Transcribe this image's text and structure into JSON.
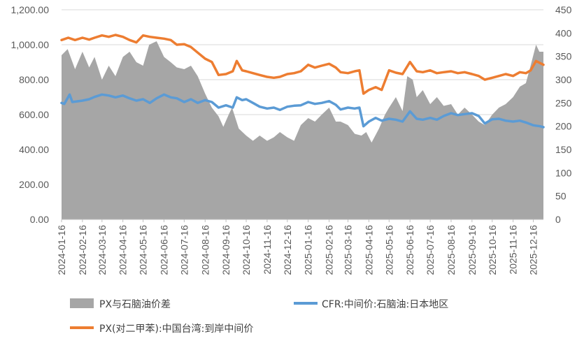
{
  "chart_data": {
    "type": "area+line",
    "title": "",
    "x_ticks": [
      "2024-01-16",
      "2024-02-16",
      "2024-03-16",
      "2024-04-16",
      "2024-05-16",
      "2024-06-16",
      "2024-07-16",
      "2024-08-16",
      "2024-09-16",
      "2024-10-16",
      "2024-11-16",
      "2024-12-16",
      "2025-01-16",
      "2025-02-16",
      "2025-03-16",
      "2025-04-16",
      "2025-05-16",
      "2025-06-16",
      "2025-07-16",
      "2025-08-16",
      "2025-09-16",
      "2025-10-16",
      "2025-11-16",
      "2025-12-16"
    ],
    "y_left": {
      "ticks": [
        "0.00",
        "200.00",
        "400.00",
        "600.00",
        "800.00",
        "1,000.00",
        "1,200.00"
      ],
      "range": [
        0,
        1200
      ]
    },
    "y_right": {
      "ticks": [
        "0",
        "50",
        "100",
        "150",
        "200",
        "250",
        "300",
        "350",
        "400",
        "450"
      ],
      "range": [
        0,
        450
      ]
    },
    "grid": "horizontal",
    "legend_position": "bottom",
    "series": [
      {
        "name": "PX与石脑油价差",
        "kind": "area",
        "axis": "left",
        "color": "#a6a6a6",
        "points": [
          [
            "2024-01-16",
            940
          ],
          [
            "2024-01-25",
            975
          ],
          [
            "2024-02-05",
            860
          ],
          [
            "2024-02-16",
            960
          ],
          [
            "2024-02-26",
            870
          ],
          [
            "2024-03-05",
            930
          ],
          [
            "2024-03-16",
            800
          ],
          [
            "2024-03-26",
            880
          ],
          [
            "2024-04-05",
            820
          ],
          [
            "2024-04-16",
            930
          ],
          [
            "2024-04-26",
            960
          ],
          [
            "2024-05-06",
            900
          ],
          [
            "2024-05-16",
            880
          ],
          [
            "2024-05-25",
            1000
          ],
          [
            "2024-06-05",
            1020
          ],
          [
            "2024-06-16",
            930
          ],
          [
            "2024-06-26",
            900
          ],
          [
            "2024-07-05",
            870
          ],
          [
            "2024-07-16",
            860
          ],
          [
            "2024-07-26",
            880
          ],
          [
            "2024-08-05",
            820
          ],
          [
            "2024-08-16",
            720
          ],
          [
            "2024-08-26",
            640
          ],
          [
            "2024-09-05",
            590
          ],
          [
            "2024-09-12",
            530
          ],
          [
            "2024-09-20",
            600
          ],
          [
            "2024-09-25",
            640
          ],
          [
            "2024-10-05",
            520
          ],
          [
            "2024-10-16",
            480
          ],
          [
            "2024-10-26",
            450
          ],
          [
            "2024-11-05",
            480
          ],
          [
            "2024-11-16",
            450
          ],
          [
            "2024-11-26",
            470
          ],
          [
            "2024-12-05",
            500
          ],
          [
            "2024-12-16",
            470
          ],
          [
            "2024-12-26",
            450
          ],
          [
            "2025-01-05",
            540
          ],
          [
            "2025-01-16",
            580
          ],
          [
            "2025-01-26",
            560
          ],
          [
            "2025-02-05",
            600
          ],
          [
            "2025-02-16",
            640
          ],
          [
            "2025-02-26",
            560
          ],
          [
            "2025-03-05",
            560
          ],
          [
            "2025-03-16",
            540
          ],
          [
            "2025-03-26",
            490
          ],
          [
            "2025-04-05",
            480
          ],
          [
            "2025-04-12",
            500
          ],
          [
            "2025-04-20",
            440
          ],
          [
            "2025-05-01",
            520
          ],
          [
            "2025-05-10",
            600
          ],
          [
            "2025-05-16",
            640
          ],
          [
            "2025-05-26",
            700
          ],
          [
            "2025-06-05",
            620
          ],
          [
            "2025-06-12",
            820
          ],
          [
            "2025-06-20",
            800
          ],
          [
            "2025-06-26",
            700
          ],
          [
            "2025-07-05",
            740
          ],
          [
            "2025-07-16",
            660
          ],
          [
            "2025-07-26",
            700
          ],
          [
            "2025-08-05",
            650
          ],
          [
            "2025-08-16",
            660
          ],
          [
            "2025-08-26",
            600
          ],
          [
            "2025-09-05",
            640
          ],
          [
            "2025-09-16",
            600
          ],
          [
            "2025-09-26",
            560
          ],
          [
            "2025-10-05",
            540
          ],
          [
            "2025-10-16",
            600
          ],
          [
            "2025-10-26",
            640
          ],
          [
            "2025-11-05",
            660
          ],
          [
            "2025-11-16",
            700
          ],
          [
            "2025-11-26",
            760
          ],
          [
            "2025-12-05",
            780
          ],
          [
            "2025-12-12",
            880
          ],
          [
            "2025-12-20",
            1000
          ],
          [
            "2025-12-25",
            960
          ],
          [
            "2025-12-31",
            960
          ]
        ]
      },
      {
        "name": "CFR:中间价:石脑油:日本地区",
        "kind": "line",
        "axis": "right",
        "color": "#5b9bd5",
        "points": [
          [
            "2024-01-16",
            250
          ],
          [
            "2024-01-20",
            248
          ],
          [
            "2024-01-28",
            268
          ],
          [
            "2024-02-01",
            252
          ],
          [
            "2024-02-16",
            255
          ],
          [
            "2024-02-26",
            258
          ],
          [
            "2024-03-05",
            263
          ],
          [
            "2024-03-16",
            268
          ],
          [
            "2024-03-26",
            266
          ],
          [
            "2024-04-05",
            262
          ],
          [
            "2024-04-16",
            266
          ],
          [
            "2024-04-26",
            260
          ],
          [
            "2024-05-06",
            255
          ],
          [
            "2024-05-16",
            258
          ],
          [
            "2024-05-26",
            250
          ],
          [
            "2024-06-05",
            260
          ],
          [
            "2024-06-16",
            268
          ],
          [
            "2024-06-26",
            262
          ],
          [
            "2024-07-05",
            260
          ],
          [
            "2024-07-16",
            252
          ],
          [
            "2024-07-26",
            258
          ],
          [
            "2024-08-05",
            250
          ],
          [
            "2024-08-16",
            256
          ],
          [
            "2024-08-26",
            252
          ],
          [
            "2024-09-05",
            240
          ],
          [
            "2024-09-16",
            245
          ],
          [
            "2024-09-26",
            240
          ],
          [
            "2024-10-02",
            262
          ],
          [
            "2024-10-10",
            256
          ],
          [
            "2024-10-16",
            258
          ],
          [
            "2024-10-26",
            250
          ],
          [
            "2024-11-05",
            242
          ],
          [
            "2024-11-16",
            238
          ],
          [
            "2024-11-26",
            240
          ],
          [
            "2024-12-05",
            235
          ],
          [
            "2024-12-16",
            242
          ],
          [
            "2024-12-26",
            244
          ],
          [
            "2025-01-05",
            245
          ],
          [
            "2025-01-16",
            252
          ],
          [
            "2025-01-26",
            248
          ],
          [
            "2025-02-05",
            250
          ],
          [
            "2025-02-16",
            254
          ],
          [
            "2025-02-26",
            246
          ],
          [
            "2025-03-05",
            236
          ],
          [
            "2025-03-16",
            240
          ],
          [
            "2025-03-26",
            238
          ],
          [
            "2025-04-02",
            240
          ],
          [
            "2025-04-08",
            200
          ],
          [
            "2025-04-16",
            210
          ],
          [
            "2025-04-26",
            218
          ],
          [
            "2025-05-05",
            212
          ],
          [
            "2025-05-16",
            216
          ],
          [
            "2025-05-26",
            214
          ],
          [
            "2025-06-05",
            210
          ],
          [
            "2025-06-16",
            232
          ],
          [
            "2025-06-26",
            216
          ],
          [
            "2025-07-05",
            214
          ],
          [
            "2025-07-16",
            218
          ],
          [
            "2025-07-26",
            214
          ],
          [
            "2025-08-05",
            222
          ],
          [
            "2025-08-16",
            228
          ],
          [
            "2025-08-26",
            224
          ],
          [
            "2025-09-05",
            226
          ],
          [
            "2025-09-16",
            228
          ],
          [
            "2025-09-26",
            222
          ],
          [
            "2025-10-05",
            206
          ],
          [
            "2025-10-16",
            215
          ],
          [
            "2025-10-26",
            216
          ],
          [
            "2025-11-05",
            212
          ],
          [
            "2025-11-16",
            210
          ],
          [
            "2025-11-26",
            212
          ],
          [
            "2025-12-05",
            208
          ],
          [
            "2025-12-16",
            202
          ],
          [
            "2025-12-26",
            200
          ],
          [
            "2025-12-31",
            198
          ]
        ]
      },
      {
        "name": "PX(对二甲苯):中国台湾:到岸中间价",
        "kind": "line",
        "axis": "right",
        "color": "#ed7d31",
        "points": [
          [
            "2024-01-16",
            385
          ],
          [
            "2024-01-26",
            390
          ],
          [
            "2024-02-05",
            385
          ],
          [
            "2024-02-16",
            390
          ],
          [
            "2024-02-26",
            386
          ],
          [
            "2024-03-05",
            390
          ],
          [
            "2024-03-16",
            395
          ],
          [
            "2024-03-26",
            392
          ],
          [
            "2024-04-05",
            396
          ],
          [
            "2024-04-16",
            392
          ],
          [
            "2024-04-26",
            385
          ],
          [
            "2024-05-06",
            380
          ],
          [
            "2024-05-16",
            395
          ],
          [
            "2024-05-26",
            392
          ],
          [
            "2024-06-05",
            390
          ],
          [
            "2024-06-16",
            388
          ],
          [
            "2024-06-26",
            385
          ],
          [
            "2024-07-05",
            375
          ],
          [
            "2024-07-16",
            376
          ],
          [
            "2024-07-26",
            370
          ],
          [
            "2024-08-05",
            358
          ],
          [
            "2024-08-16",
            345
          ],
          [
            "2024-08-26",
            338
          ],
          [
            "2024-09-05",
            310
          ],
          [
            "2024-09-16",
            312
          ],
          [
            "2024-09-26",
            318
          ],
          [
            "2024-10-02",
            340
          ],
          [
            "2024-10-10",
            320
          ],
          [
            "2024-10-16",
            318
          ],
          [
            "2024-10-26",
            314
          ],
          [
            "2024-11-05",
            310
          ],
          [
            "2024-11-16",
            306
          ],
          [
            "2024-11-26",
            304
          ],
          [
            "2024-12-05",
            306
          ],
          [
            "2024-12-16",
            312
          ],
          [
            "2024-12-26",
            314
          ],
          [
            "2025-01-05",
            318
          ],
          [
            "2025-01-16",
            332
          ],
          [
            "2025-01-26",
            326
          ],
          [
            "2025-02-05",
            330
          ],
          [
            "2025-02-16",
            334
          ],
          [
            "2025-02-26",
            326
          ],
          [
            "2025-03-05",
            316
          ],
          [
            "2025-03-16",
            314
          ],
          [
            "2025-03-26",
            318
          ],
          [
            "2025-04-02",
            320
          ],
          [
            "2025-04-08",
            270
          ],
          [
            "2025-04-16",
            278
          ],
          [
            "2025-04-26",
            284
          ],
          [
            "2025-05-05",
            278
          ],
          [
            "2025-05-16",
            320
          ],
          [
            "2025-05-26",
            315
          ],
          [
            "2025-06-05",
            312
          ],
          [
            "2025-06-16",
            338
          ],
          [
            "2025-06-26",
            318
          ],
          [
            "2025-07-05",
            316
          ],
          [
            "2025-07-16",
            320
          ],
          [
            "2025-07-26",
            314
          ],
          [
            "2025-08-05",
            316
          ],
          [
            "2025-08-16",
            318
          ],
          [
            "2025-08-26",
            314
          ],
          [
            "2025-09-05",
            316
          ],
          [
            "2025-09-16",
            312
          ],
          [
            "2025-09-26",
            308
          ],
          [
            "2025-10-05",
            300
          ],
          [
            "2025-10-16",
            304
          ],
          [
            "2025-10-26",
            308
          ],
          [
            "2025-11-05",
            312
          ],
          [
            "2025-11-16",
            308
          ],
          [
            "2025-11-26",
            316
          ],
          [
            "2025-12-05",
            314
          ],
          [
            "2025-12-12",
            320
          ],
          [
            "2025-12-20",
            340
          ],
          [
            "2025-12-31",
            332
          ]
        ]
      }
    ]
  }
}
